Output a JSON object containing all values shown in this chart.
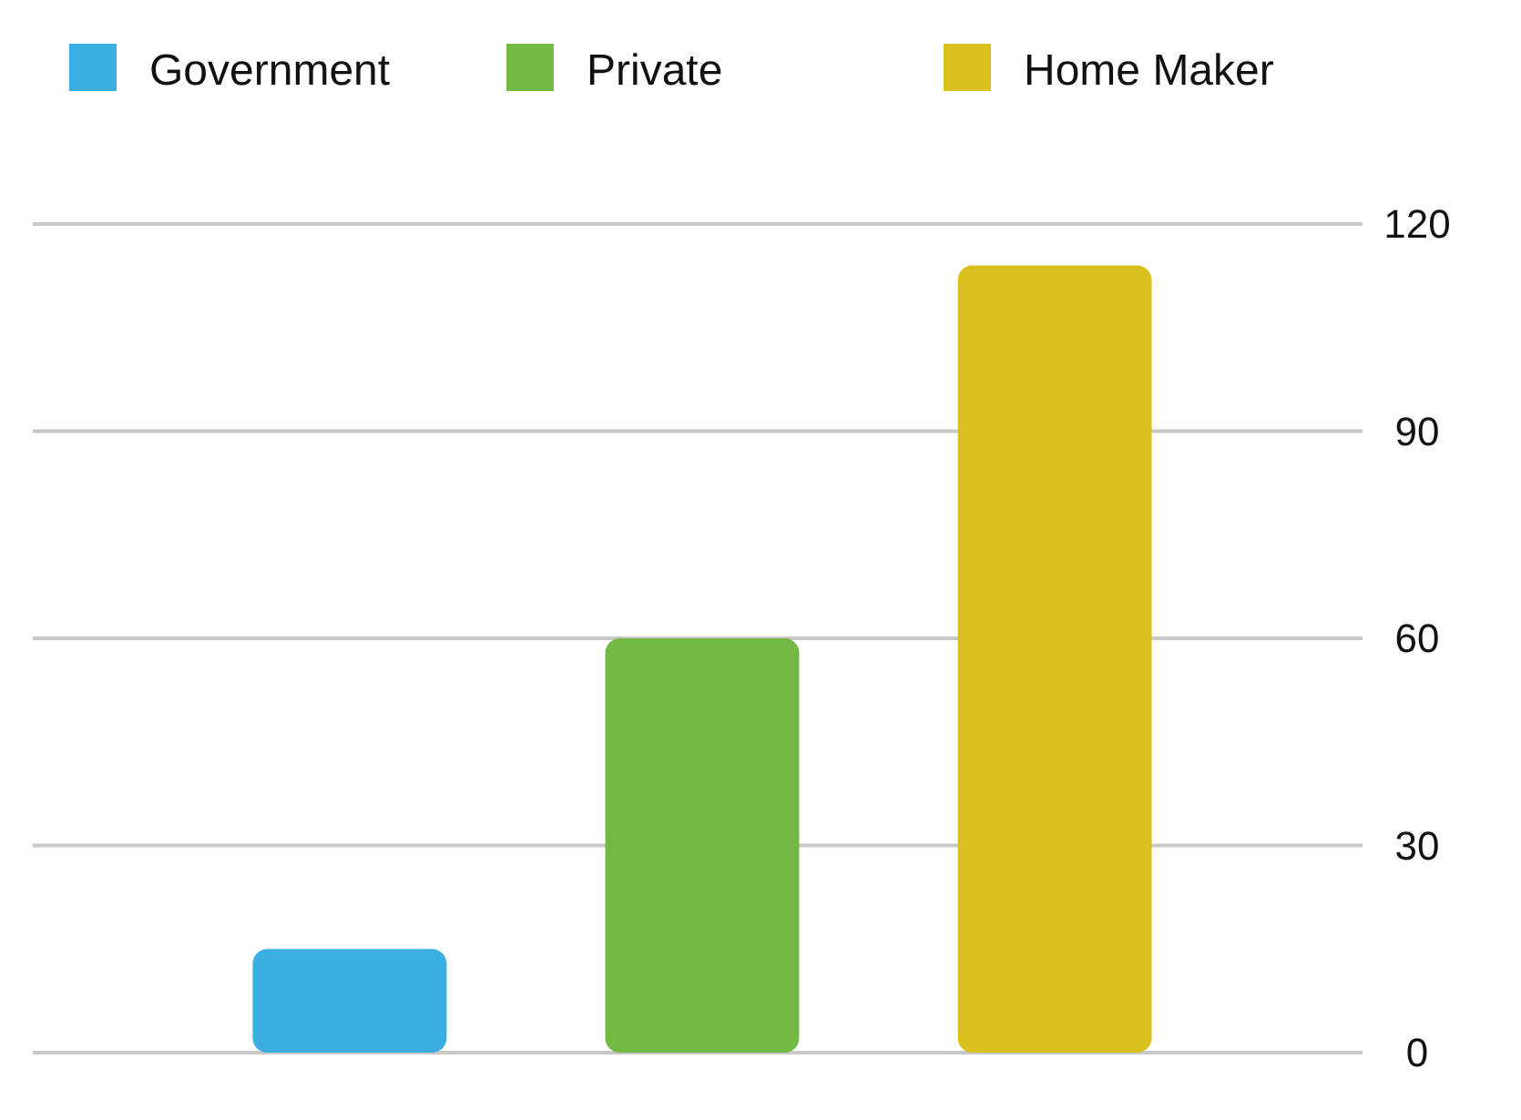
{
  "chart_data": {
    "type": "bar",
    "categories": [
      null
    ],
    "series": [
      {
        "name": "Government",
        "color": "#3aaee0",
        "values": [
          15
        ]
      },
      {
        "name": "Private",
        "color": "#72b843",
        "values": [
          60
        ]
      },
      {
        "name": "Home Maker",
        "color": "#d8c11c",
        "values": [
          114
        ]
      }
    ],
    "ylim": [
      0,
      120
    ],
    "yticks": [
      0,
      30,
      60,
      90,
      120
    ],
    "grid": "y",
    "legend": "top left"
  }
}
